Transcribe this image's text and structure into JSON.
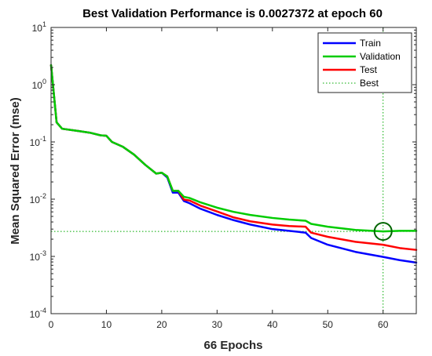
{
  "chart_data": {
    "type": "line",
    "title": "Best Validation Performance is 0.0027372 at epoch 60",
    "xlabel": "66 Epochs",
    "ylabel": "Mean Squared Error  (mse)",
    "xlim": [
      0,
      66
    ],
    "ylim": [
      0.0001,
      10
    ],
    "yscale": "log",
    "xticks": [
      0,
      10,
      20,
      30,
      40,
      50,
      60
    ],
    "yticks": [
      0.0001,
      0.001,
      0.01,
      0.1,
      1,
      10
    ],
    "ytick_labels": [
      {
        "base": "10",
        "exp": "-4"
      },
      {
        "base": "10",
        "exp": "-3"
      },
      {
        "base": "10",
        "exp": "-2"
      },
      {
        "base": "10",
        "exp": "-1"
      },
      {
        "base": "10",
        "exp": "0"
      },
      {
        "base": "10",
        "exp": "1"
      }
    ],
    "grid": false,
    "legend_position": "top-right",
    "series": [
      {
        "name": "Train",
        "color": "#0000ff",
        "points": [
          [
            0,
            2.2
          ],
          [
            1,
            0.22
          ],
          [
            2,
            0.17
          ],
          [
            5,
            0.155
          ],
          [
            7,
            0.145
          ],
          [
            9,
            0.13
          ],
          [
            10,
            0.128
          ],
          [
            11,
            0.1
          ],
          [
            13,
            0.082
          ],
          [
            15,
            0.06
          ],
          [
            17,
            0.04
          ],
          [
            19,
            0.028
          ],
          [
            20,
            0.029
          ],
          [
            21,
            0.024
          ],
          [
            22,
            0.013
          ],
          [
            23,
            0.013
          ],
          [
            24,
            0.0093
          ],
          [
            25,
            0.0085
          ],
          [
            27,
            0.0068
          ],
          [
            30,
            0.0053
          ],
          [
            33,
            0.0043
          ],
          [
            36,
            0.0036
          ],
          [
            40,
            0.003
          ],
          [
            43,
            0.0028
          ],
          [
            46,
            0.0026
          ],
          [
            47,
            0.0021
          ],
          [
            50,
            0.0016
          ],
          [
            55,
            0.0012
          ],
          [
            60,
            0.00098
          ],
          [
            63,
            0.00086
          ],
          [
            66,
            0.00078
          ]
        ]
      },
      {
        "name": "Validation",
        "color": "#00cc00",
        "points": [
          [
            0,
            2.2
          ],
          [
            1,
            0.22
          ],
          [
            2,
            0.17
          ],
          [
            5,
            0.155
          ],
          [
            7,
            0.145
          ],
          [
            9,
            0.13
          ],
          [
            10,
            0.128
          ],
          [
            11,
            0.1
          ],
          [
            13,
            0.082
          ],
          [
            15,
            0.06
          ],
          [
            17,
            0.04
          ],
          [
            19,
            0.028
          ],
          [
            20,
            0.029
          ],
          [
            21,
            0.025
          ],
          [
            22,
            0.014
          ],
          [
            23,
            0.014
          ],
          [
            24,
            0.011
          ],
          [
            25,
            0.0105
          ],
          [
            27,
            0.0088
          ],
          [
            30,
            0.0071
          ],
          [
            33,
            0.006
          ],
          [
            36,
            0.0053
          ],
          [
            40,
            0.0047
          ],
          [
            43,
            0.0044
          ],
          [
            46,
            0.0042
          ],
          [
            47,
            0.0037
          ],
          [
            50,
            0.0033
          ],
          [
            55,
            0.0029
          ],
          [
            58,
            0.0028
          ],
          [
            60,
            0.0027372
          ],
          [
            63,
            0.0028
          ],
          [
            66,
            0.0028
          ]
        ]
      },
      {
        "name": "Test",
        "color": "#ff0000",
        "points": [
          [
            0,
            2.2
          ],
          [
            1,
            0.22
          ],
          [
            2,
            0.17
          ],
          [
            5,
            0.155
          ],
          [
            7,
            0.145
          ],
          [
            9,
            0.13
          ],
          [
            10,
            0.128
          ],
          [
            11,
            0.1
          ],
          [
            13,
            0.082
          ],
          [
            15,
            0.06
          ],
          [
            17,
            0.04
          ],
          [
            19,
            0.028
          ],
          [
            20,
            0.029
          ],
          [
            21,
            0.025
          ],
          [
            22,
            0.014
          ],
          [
            23,
            0.014
          ],
          [
            24,
            0.0098
          ],
          [
            25,
            0.0095
          ],
          [
            27,
            0.0077
          ],
          [
            30,
            0.0061
          ],
          [
            33,
            0.0048
          ],
          [
            36,
            0.0041
          ],
          [
            40,
            0.0036
          ],
          [
            43,
            0.0034
          ],
          [
            46,
            0.0033
          ],
          [
            47,
            0.0026
          ],
          [
            50,
            0.0022
          ],
          [
            55,
            0.0018
          ],
          [
            60,
            0.0016
          ],
          [
            63,
            0.0014
          ],
          [
            66,
            0.0013
          ]
        ]
      }
    ],
    "best": {
      "name": "Best",
      "color": "#00aa00",
      "marker_color": "#006400",
      "epoch": 60,
      "value": 0.0027372
    }
  }
}
